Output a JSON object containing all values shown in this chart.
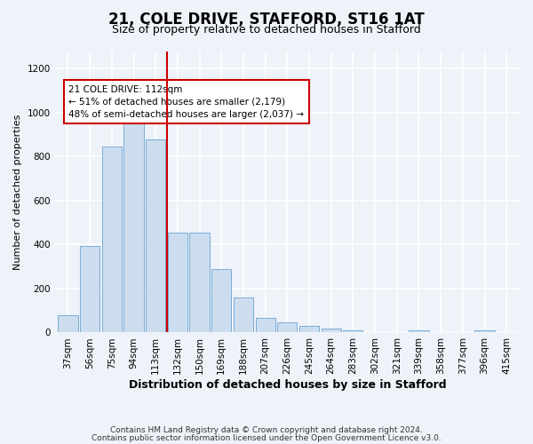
{
  "title1": "21, COLE DRIVE, STAFFORD, ST16 1AT",
  "title2": "Size of property relative to detached houses in Stafford",
  "xlabel": "Distribution of detached houses by size in Stafford",
  "ylabel": "Number of detached properties",
  "categories": [
    "37sqm",
    "56sqm",
    "75sqm",
    "94sqm",
    "113sqm",
    "132sqm",
    "150sqm",
    "169sqm",
    "188sqm",
    "207sqm",
    "226sqm",
    "245sqm",
    "264sqm",
    "283sqm",
    "302sqm",
    "321sqm",
    "339sqm",
    "358sqm",
    "377sqm",
    "396sqm",
    "415sqm"
  ],
  "values": [
    80,
    395,
    845,
    960,
    880,
    455,
    455,
    290,
    160,
    65,
    47,
    30,
    20,
    8,
    0,
    0,
    8,
    0,
    0,
    8,
    0
  ],
  "bar_color": "#ccddf0",
  "bar_edge_color": "#7aadd4",
  "red_line_x": 4.5,
  "annotation_text": "21 COLE DRIVE: 112sqm\n← 51% of detached houses are smaller (2,179)\n48% of semi-detached houses are larger (2,037) →",
  "annotation_box_color": "#ffffff",
  "annotation_box_edge": "#cc0000",
  "ylim": [
    0,
    1280
  ],
  "yticks": [
    0,
    200,
    400,
    600,
    800,
    1000,
    1200
  ],
  "footer1": "Contains HM Land Registry data © Crown copyright and database right 2024.",
  "footer2": "Contains public sector information licensed under the Open Government Licence v3.0.",
  "background_color": "#eef2f9",
  "plot_bg_color": "#eef2f9",
  "grid_color": "#ffffff",
  "title_fontsize": 12,
  "subtitle_fontsize": 9,
  "ylabel_fontsize": 8,
  "xlabel_fontsize": 9,
  "tick_fontsize": 7.5,
  "footer_fontsize": 6.5
}
